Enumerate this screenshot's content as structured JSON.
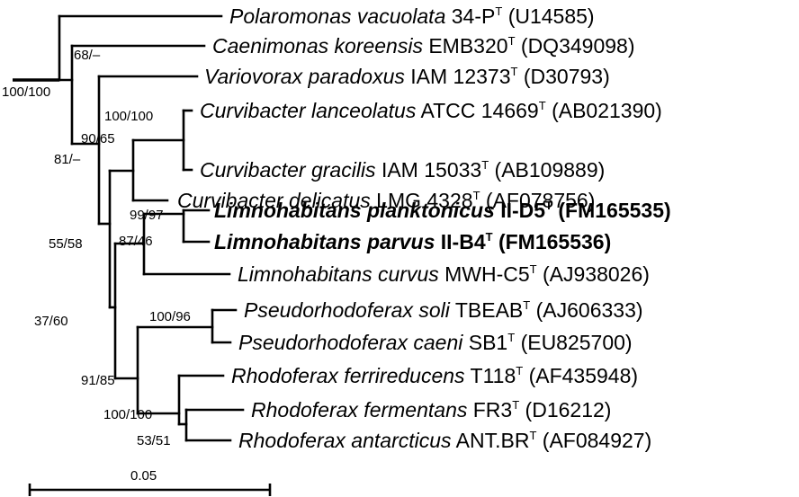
{
  "tree": {
    "taxa": [
      {
        "genus": "Polaromonas vacuolata",
        "strain": "34-P",
        "type_mark": "T",
        "accession": "(U14585)",
        "bold": false
      },
      {
        "genus": "Caenimonas koreensis",
        "strain": "EMB320",
        "type_mark": "T",
        "accession": "(DQ349098)",
        "bold": false
      },
      {
        "genus": "Variovorax paradoxus",
        "strain": "IAM 12373",
        "type_mark": "T",
        "accession": "(D30793)",
        "bold": false
      },
      {
        "genus": "Curvibacter lanceolatus",
        "strain": "ATCC 14669",
        "type_mark": "T",
        "accession": "(AB021390)",
        "bold": false
      },
      {
        "genus": "Curvibacter gracilis",
        "strain": "IAM 15033",
        "type_mark": "T",
        "accession": "(AB109889)",
        "bold": false
      },
      {
        "genus": "Curvibacter delicatus",
        "strain": "LMG 4328",
        "type_mark": "T",
        "accession": "(AF078756)",
        "bold": false
      },
      {
        "genus": "Limnohabitans planktonicus",
        "strain": "II-D5",
        "type_mark": "T",
        "accession": "(FM165535)",
        "bold": true
      },
      {
        "genus": "Limnohabitans parvus",
        "strain": "II-B4",
        "type_mark": "T",
        "accession": "(FM165536)",
        "bold": true
      },
      {
        "genus": "Limnohabitans curvus",
        "strain": "MWH-C5",
        "type_mark": "T",
        "accession": "(AJ938026)",
        "bold": false
      },
      {
        "genus": "Pseudorhodoferax soli",
        "strain": "TBEAB",
        "type_mark": "T",
        "accession": "(AJ606333)",
        "bold": false
      },
      {
        "genus": "Pseudorhodoferax caeni",
        "strain": "SB1",
        "type_mark": "T",
        "accession": "(EU825700)",
        "bold": false
      },
      {
        "genus": "Rhodoferax ferrireducens",
        "strain": "T118",
        "type_mark": "T",
        "accession": "(AF435948)",
        "bold": false
      },
      {
        "genus": "Rhodoferax fermentans",
        "strain": "FR3",
        "type_mark": "T",
        "accession": "(D16212)",
        "bold": false
      },
      {
        "genus": "Rhodoferax antarcticus",
        "strain": "ANT.BR",
        "type_mark": "T",
        "accession": "(AF084927)",
        "bold": false
      }
    ],
    "supports": [
      "100/100",
      "68/–",
      "81/–",
      "90/65",
      "100/100",
      "55/58",
      "99/97",
      "87/46",
      "37/60",
      "100/96",
      "91/85",
      "100/100",
      "53/51"
    ],
    "scale_label": "0.05"
  }
}
